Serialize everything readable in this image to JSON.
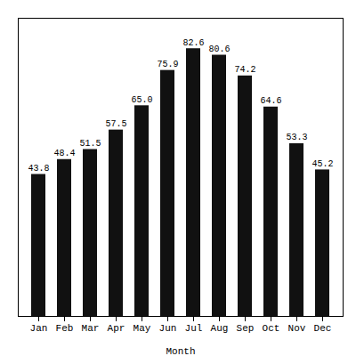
{
  "chart_data": {
    "type": "bar",
    "xlabel": "Month",
    "categories": [
      "Jan",
      "Feb",
      "Mar",
      "Apr",
      "May",
      "Jun",
      "Jul",
      "Aug",
      "Sep",
      "Oct",
      "Nov",
      "Dec"
    ],
    "values": [
      43.8,
      48.4,
      51.5,
      57.5,
      65.0,
      75.9,
      82.6,
      80.6,
      74.2,
      64.6,
      53.3,
      45.2
    ],
    "value_labels": [
      "43.8",
      "48.4",
      "51.5",
      "57.5",
      "65.0",
      "75.9",
      "82.6",
      "80.6",
      "74.2",
      "64.6",
      "53.3",
      "45.2"
    ],
    "color": "#111111",
    "ylim": [
      0,
      92
    ],
    "data_labels": true,
    "tick_labels": "x",
    "grid": false
  }
}
